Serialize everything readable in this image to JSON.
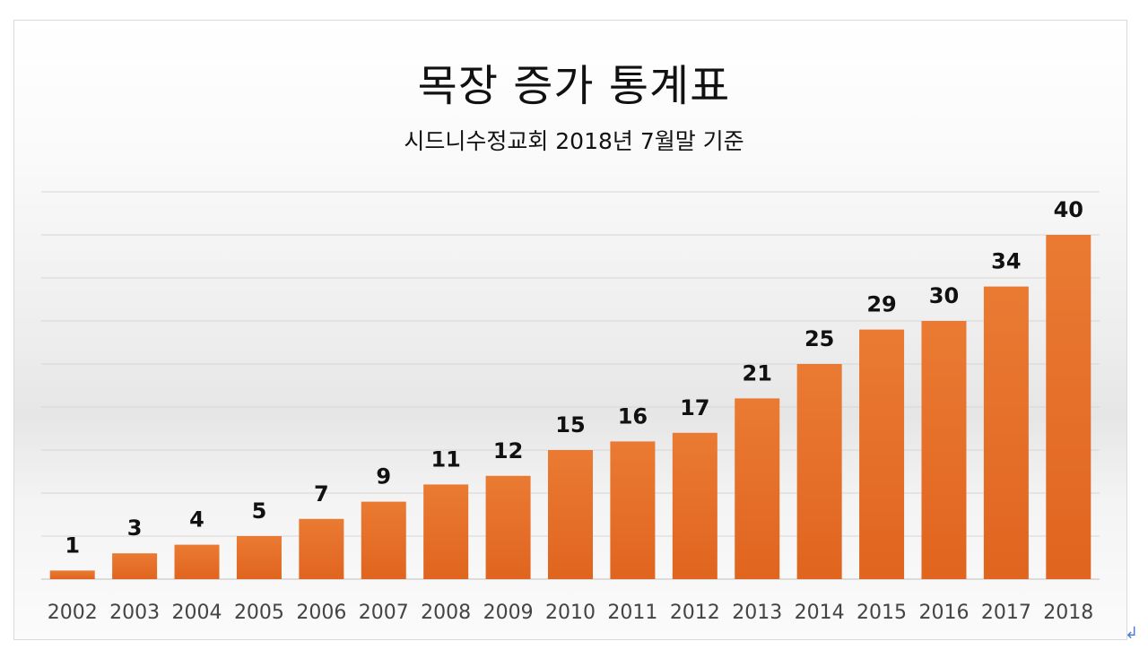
{
  "chart_data": {
    "type": "bar",
    "title": "목장 증가 통계표",
    "subtitle": "시드니수정교회 2018년 7월말 기준",
    "categories": [
      "2002",
      "2003",
      "2004",
      "2005",
      "2006",
      "2007",
      "2008",
      "2009",
      "2010",
      "2011",
      "2012",
      "2013",
      "2014",
      "2015",
      "2016",
      "2017",
      "2018"
    ],
    "values": [
      1,
      3,
      4,
      5,
      7,
      9,
      11,
      12,
      15,
      16,
      17,
      21,
      25,
      29,
      30,
      34,
      40
    ],
    "ylim": [
      0,
      45
    ],
    "y_gridline_step": 5,
    "y_axis_labels_shown": false,
    "grid": true,
    "data_labels": true,
    "bar_color": "#EA7A33",
    "bar_color_dark": "#E0651F"
  },
  "decor": {
    "return_mark": "↲"
  }
}
